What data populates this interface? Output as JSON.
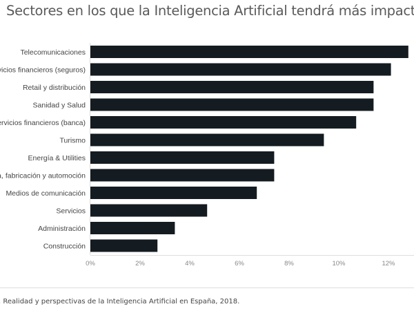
{
  "chart_data": {
    "type": "bar",
    "orientation": "horizontal",
    "title": "Sectores en los que la Inteligencia Artificial tendrá más impacto",
    "categories": [
      "Telecomunicaciones",
      "Servicios financieros (seguros)",
      "Retail y distribución",
      "Sanidad y Salud",
      "Servicios financieros (banca)",
      "Turismo",
      "Energía & Utilities",
      "Industria, fabricación y automoción",
      "Medios de comunicación",
      "Servicios",
      "Administración",
      "Construcción"
    ],
    "values": [
      12.8,
      12.1,
      11.4,
      11.4,
      10.7,
      9.4,
      7.4,
      7.4,
      6.7,
      4.7,
      3.4,
      2.7
    ],
    "xlim": [
      0,
      13
    ],
    "xticks": [
      "0%",
      "2%",
      "4%",
      "6%",
      "8%",
      "10%",
      "12%"
    ],
    "xtick_values": [
      0,
      2,
      4,
      6,
      8,
      10,
      12
    ],
    "grid": false,
    "bar_color": "#141c21",
    "source": ". Realidad y perspectivas de la Inteligencia Artificial en España, 2018."
  }
}
